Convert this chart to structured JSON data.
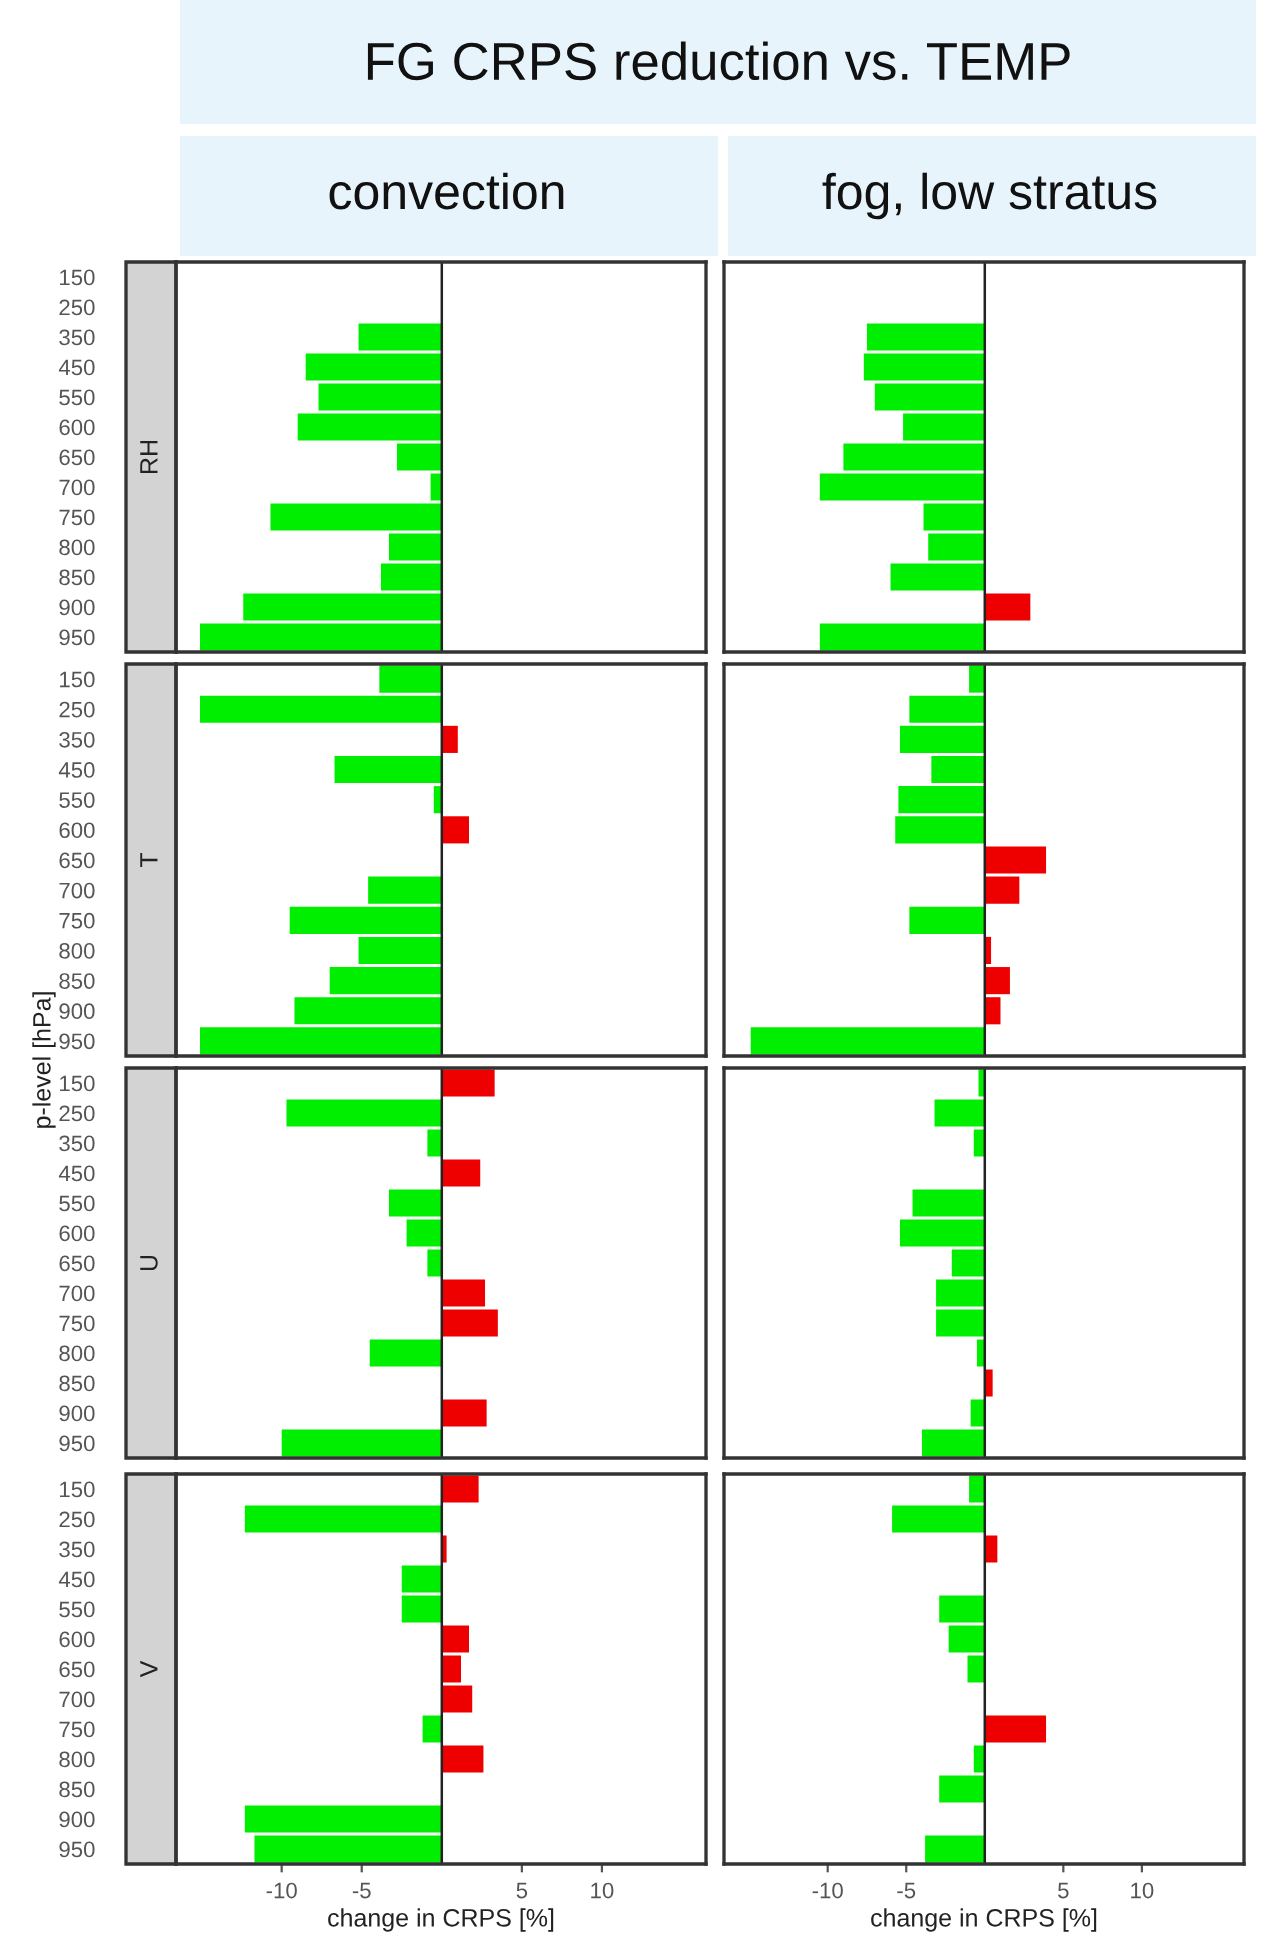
{
  "chart_data": [
    {
      "type": "bar",
      "orientation": "horizontal",
      "title": "FG CRPS reduction vs. TEMP",
      "subtitle": "convection",
      "ylabel": "RH",
      "annotations": [
        "p-level [hPa]"
      ],
      "categories": [
        "150",
        "250",
        "350",
        "450",
        "550",
        "600",
        "650",
        "700",
        "750",
        "800",
        "850",
        "900",
        "950"
      ],
      "values": [
        null,
        null,
        -5.2,
        -8.5,
        -7.7,
        -9.0,
        -2.8,
        -0.7,
        -10.7,
        -3.3,
        -3.8,
        -12.4,
        -15.1
      ],
      "colors": [
        null,
        null,
        "#00ee00",
        "#00ee00",
        "#00ee00",
        "#00ee00",
        "#00ee00",
        "#00ee00",
        "#00ee00",
        "#00ee00",
        "#00ee00",
        "#00ee00",
        "#00ee00"
      ],
      "xlim": [
        -16.6,
        16.5
      ],
      "xticks": [
        -10,
        -5,
        5,
        10
      ],
      "tick_labels": "y",
      "ref_lines": [
        {
          "axis": "x",
          "value": 0
        }
      ]
    },
    {
      "type": "bar",
      "orientation": "horizontal",
      "subtitle": "fog, low stratus",
      "categories": [
        "150",
        "250",
        "350",
        "450",
        "550",
        "600",
        "650",
        "700",
        "750",
        "800",
        "850",
        "900",
        "950"
      ],
      "values": [
        null,
        null,
        -7.5,
        -7.7,
        -7.0,
        -5.2,
        -9.0,
        -10.5,
        -3.9,
        -3.6,
        -6.0,
        2.9,
        -10.5
      ],
      "colors": [
        null,
        null,
        "#00ee00",
        "#00ee00",
        "#00ee00",
        "#00ee00",
        "#00ee00",
        "#00ee00",
        "#00ee00",
        "#00ee00",
        "#00ee00",
        "#ee0000",
        "#00ee00"
      ],
      "xlim": [
        -16.6,
        16.5
      ],
      "xticks": [
        -10,
        -5,
        5,
        10
      ],
      "tick_labels": false,
      "ref_lines": [
        {
          "axis": "x",
          "value": 0
        }
      ]
    },
    {
      "type": "bar",
      "orientation": "horizontal",
      "ylabel": "T",
      "categories": [
        "150",
        "250",
        "350",
        "450",
        "550",
        "600",
        "650",
        "700",
        "750",
        "800",
        "850",
        "900",
        "950"
      ],
      "values": [
        -3.9,
        -15.1,
        1.0,
        -6.7,
        -0.5,
        1.7,
        null,
        -4.6,
        -9.5,
        -5.2,
        -7.0,
        -9.2,
        -15.1
      ],
      "colors": [
        "#00ee00",
        "#00ee00",
        "#ee0000",
        "#00ee00",
        "#00ee00",
        "#ee0000",
        null,
        "#00ee00",
        "#00ee00",
        "#00ee00",
        "#00ee00",
        "#00ee00",
        "#00ee00"
      ],
      "xlim": [
        -16.6,
        16.5
      ],
      "xticks": [
        -10,
        -5,
        5,
        10
      ],
      "tick_labels": "y",
      "ref_lines": [
        {
          "axis": "x",
          "value": 0
        }
      ]
    },
    {
      "type": "bar",
      "orientation": "horizontal",
      "categories": [
        "150",
        "250",
        "350",
        "450",
        "550",
        "600",
        "650",
        "700",
        "750",
        "800",
        "850",
        "900",
        "950"
      ],
      "values": [
        -1.0,
        -4.8,
        -5.4,
        -3.4,
        -5.5,
        -5.7,
        3.9,
        2.2,
        -4.8,
        0.4,
        1.6,
        1.0,
        -14.9
      ],
      "colors": [
        "#00ee00",
        "#00ee00",
        "#00ee00",
        "#00ee00",
        "#00ee00",
        "#00ee00",
        "#ee0000",
        "#ee0000",
        "#00ee00",
        "#ee0000",
        "#ee0000",
        "#ee0000",
        "#00ee00"
      ],
      "xlim": [
        -16.6,
        16.5
      ],
      "xticks": [
        -10,
        -5,
        5,
        10
      ],
      "tick_labels": false,
      "ref_lines": [
        {
          "axis": "x",
          "value": 0
        }
      ]
    },
    {
      "type": "bar",
      "orientation": "horizontal",
      "ylabel": "U",
      "categories": [
        "150",
        "250",
        "350",
        "450",
        "550",
        "600",
        "650",
        "700",
        "750",
        "800",
        "850",
        "900",
        "950"
      ],
      "values": [
        3.3,
        -9.7,
        -0.9,
        2.4,
        -3.3,
        -2.2,
        -0.9,
        2.7,
        3.5,
        -4.5,
        null,
        2.8,
        -10.0
      ],
      "colors": [
        "#ee0000",
        "#00ee00",
        "#00ee00",
        "#ee0000",
        "#00ee00",
        "#00ee00",
        "#00ee00",
        "#ee0000",
        "#ee0000",
        "#00ee00",
        null,
        "#ee0000",
        "#00ee00"
      ],
      "xlim": [
        -16.6,
        16.5
      ],
      "xticks": [
        -10,
        -5,
        5,
        10
      ],
      "tick_labels": "y",
      "ref_lines": [
        {
          "axis": "x",
          "value": 0
        }
      ]
    },
    {
      "type": "bar",
      "orientation": "horizontal",
      "categories": [
        "150",
        "250",
        "350",
        "450",
        "550",
        "600",
        "650",
        "700",
        "750",
        "800",
        "850",
        "900",
        "950"
      ],
      "values": [
        -0.4,
        -3.2,
        -0.7,
        null,
        -4.6,
        -5.4,
        -2.1,
        -3.1,
        -3.1,
        -0.5,
        0.5,
        -0.9,
        -4.0
      ],
      "colors": [
        "#00ee00",
        "#00ee00",
        "#00ee00",
        null,
        "#00ee00",
        "#00ee00",
        "#00ee00",
        "#00ee00",
        "#00ee00",
        "#00ee00",
        "#ee0000",
        "#00ee00",
        "#00ee00"
      ],
      "xlim": [
        -16.6,
        16.5
      ],
      "xticks": [
        -10,
        -5,
        5,
        10
      ],
      "tick_labels": false,
      "ref_lines": [
        {
          "axis": "x",
          "value": 0
        }
      ]
    },
    {
      "type": "bar",
      "orientation": "horizontal",
      "ylabel": "V",
      "xlabel": "change in CRPS [%]",
      "categories": [
        "150",
        "250",
        "350",
        "450",
        "550",
        "600",
        "650",
        "700",
        "750",
        "800",
        "850",
        "900",
        "950"
      ],
      "values": [
        2.3,
        -12.3,
        0.3,
        -2.5,
        -2.5,
        1.7,
        1.2,
        1.9,
        -1.2,
        2.6,
        null,
        -12.3,
        -11.7
      ],
      "colors": [
        "#ee0000",
        "#00ee00",
        "#ee0000",
        "#00ee00",
        "#00ee00",
        "#ee0000",
        "#ee0000",
        "#ee0000",
        "#00ee00",
        "#ee0000",
        null,
        "#00ee00",
        "#00ee00"
      ],
      "xlim": [
        -16.6,
        16.5
      ],
      "xticks": [
        -10,
        -5,
        5,
        10
      ],
      "ref_lines": [
        {
          "axis": "x",
          "value": 0
        }
      ]
    },
    {
      "type": "bar",
      "orientation": "horizontal",
      "xlabel": "change in CRPS [%]",
      "categories": [
        "150",
        "250",
        "350",
        "450",
        "550",
        "600",
        "650",
        "700",
        "750",
        "800",
        "850",
        "900",
        "950"
      ],
      "values": [
        -1.0,
        -5.9,
        0.8,
        null,
        -2.9,
        -2.3,
        -1.1,
        null,
        3.9,
        -0.7,
        -2.9,
        null,
        -3.8
      ],
      "colors": [
        "#00ee00",
        "#00ee00",
        "#ee0000",
        null,
        "#00ee00",
        "#00ee00",
        "#00ee00",
        null,
        "#ee0000",
        "#00ee00",
        "#00ee00",
        null,
        "#00ee00"
      ],
      "xlim": [
        -16.6,
        16.5
      ],
      "xticks": [
        -10,
        -5,
        5,
        10
      ],
      "tick_labels": "x",
      "ref_lines": [
        {
          "axis": "x",
          "value": 0
        }
      ]
    }
  ]
}
